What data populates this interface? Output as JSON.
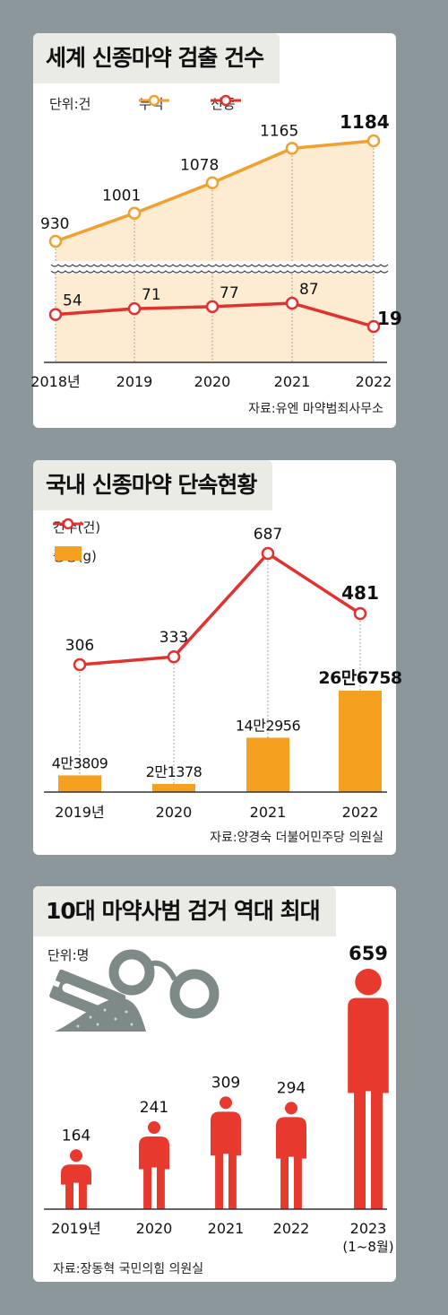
{
  "chart_data": [
    {
      "type": "line",
      "title": "세계 신종마약 검출 건수",
      "unit": "단위:건",
      "categories": [
        "2018년",
        "2019",
        "2020",
        "2021",
        "2022"
      ],
      "series": [
        {
          "name": "누적",
          "color": "#f0a030",
          "values": [
            930,
            1001,
            1078,
            1165,
            1184
          ]
        },
        {
          "name": "신종",
          "color": "#e0322e",
          "values": [
            54,
            71,
            77,
            87,
            19
          ]
        }
      ],
      "value_labels_top": [
        "930",
        "1001",
        "1078",
        "1165",
        "1184"
      ],
      "value_labels_bottom": [
        "54",
        "71",
        "77",
        "87",
        "19"
      ],
      "axis_break": true,
      "source": "자료:유엔 마약범죄사무소"
    },
    {
      "type": "bar",
      "title": "국내 신종마약 단속현황",
      "categories": [
        "2019년",
        "2020",
        "2021",
        "2022"
      ],
      "series": [
        {
          "name": "건수(건)",
          "color": "#e0322e",
          "values": [
            306,
            333,
            687,
            481
          ]
        },
        {
          "name": "중량(g)",
          "color": "#f5a01e",
          "values": [
            43809,
            21378,
            142956,
            266758
          ]
        }
      ],
      "count_labels": [
        "306",
        "333",
        "687",
        "481"
      ],
      "weight_labels": [
        "4만3809",
        "2만1378",
        "14만2956",
        "26만6758"
      ],
      "source": "자료:양경숙 더불어민주당 의원실"
    },
    {
      "type": "bar",
      "title": "10대 마약사범 검거 역대 최대",
      "unit": "단위:명",
      "categories": [
        "2019년",
        "2020",
        "2021",
        "2022",
        "2023"
      ],
      "category_note": "(1~8월)",
      "values": [
        164,
        241,
        309,
        294,
        659
      ],
      "value_labels": [
        "164",
        "241",
        "309",
        "294",
        "659"
      ],
      "color": "#e8392f",
      "source": "자료:장동혁 국민의힘 의원실"
    }
  ]
}
